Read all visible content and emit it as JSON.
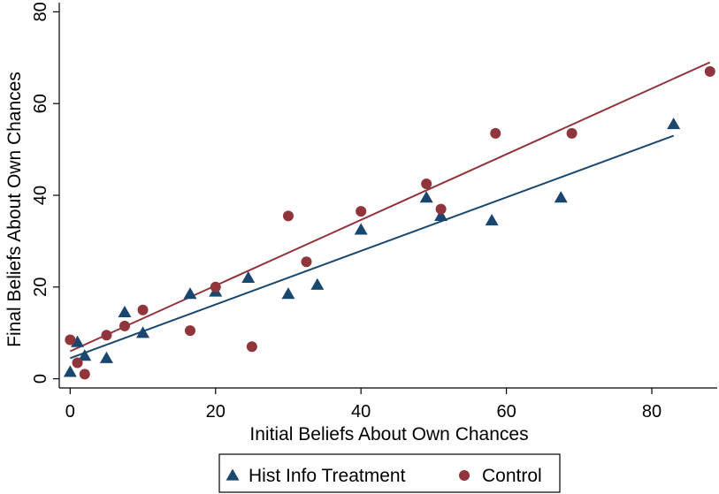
{
  "chart_data": {
    "type": "scatter",
    "xlabel": "Initial Beliefs About Own Chances",
    "ylabel": "Final Beliefs About Own Chances",
    "xlim": [
      -1.5,
      89
    ],
    "ylim": [
      -2,
      82
    ],
    "xticks": [
      0,
      20,
      40,
      60,
      80
    ],
    "yticks": [
      0,
      20,
      40,
      60,
      80
    ],
    "grid": false,
    "legend_position": "bottom",
    "series": [
      {
        "name": "Hist Info Treatment",
        "marker": "triangle",
        "color": "#1a476f",
        "points": [
          [
            0,
            1.5
          ],
          [
            1,
            8
          ],
          [
            2,
            5
          ],
          [
            5,
            4.5
          ],
          [
            7.5,
            14.5
          ],
          [
            10,
            10
          ],
          [
            16.5,
            18.5
          ],
          [
            20,
            19
          ],
          [
            24.5,
            22
          ],
          [
            30,
            18.5
          ],
          [
            34,
            20.5
          ],
          [
            40,
            32.5
          ],
          [
            49,
            39.5
          ],
          [
            51,
            35.5
          ],
          [
            58,
            34.5
          ],
          [
            67.5,
            39.5
          ],
          [
            83,
            55.5
          ]
        ],
        "fit": {
          "x": [
            0,
            83
          ],
          "y": [
            4.5,
            53
          ]
        }
      },
      {
        "name": "Control",
        "marker": "circle",
        "color": "#90353b",
        "points": [
          [
            0,
            8.5
          ],
          [
            1,
            3.5
          ],
          [
            2,
            1
          ],
          [
            5,
            9.5
          ],
          [
            7.5,
            11.5
          ],
          [
            10,
            15
          ],
          [
            16.5,
            10.5
          ],
          [
            20,
            20
          ],
          [
            25,
            7
          ],
          [
            30,
            35.5
          ],
          [
            32.5,
            25.5
          ],
          [
            40,
            36.5
          ],
          [
            49,
            42.5
          ],
          [
            51,
            37
          ],
          [
            58.5,
            53.5
          ],
          [
            69,
            53.5
          ],
          [
            88,
            67
          ]
        ],
        "fit": {
          "x": [
            0,
            88
          ],
          "y": [
            6,
            69
          ]
        }
      }
    ]
  }
}
